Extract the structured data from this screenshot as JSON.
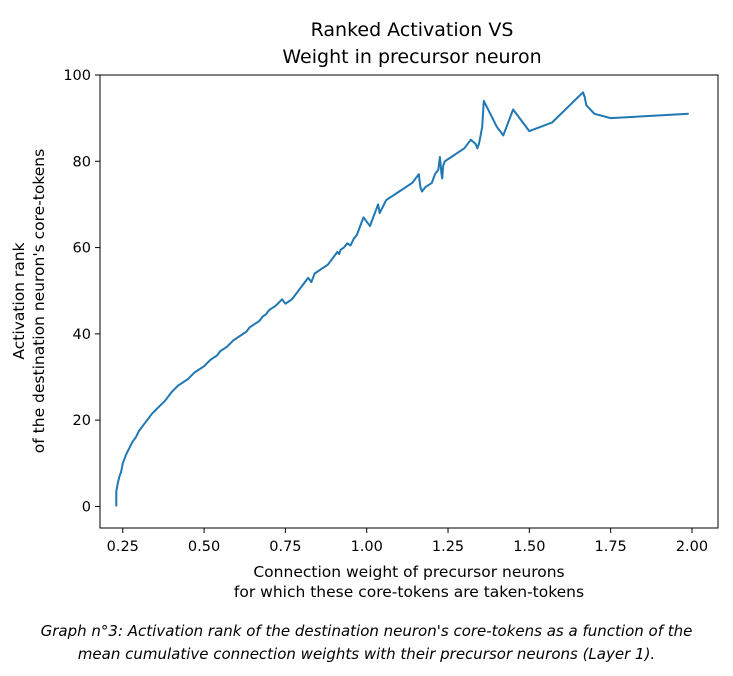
{
  "chart_data": {
    "type": "line",
    "title_lines": [
      "Ranked Activation VS",
      "Weight in precursor neuron"
    ],
    "xlabel_lines": [
      "Connection weight of precursor neurons",
      "for which these core-tokens are taken-tokens"
    ],
    "ylabel_lines": [
      "Activation rank",
      "of the destination neuron's core-tokens"
    ],
    "xlim": [
      0.18,
      2.08
    ],
    "ylim": [
      -5,
      100
    ],
    "xticks": [
      0.25,
      0.5,
      0.75,
      1.0,
      1.25,
      1.5,
      1.75,
      2.0
    ],
    "xtick_labels": [
      "0.25",
      "0.50",
      "0.75",
      "1.00",
      "1.25",
      "1.50",
      "1.75",
      "2.00"
    ],
    "yticks": [
      0,
      20,
      40,
      60,
      80,
      100
    ],
    "ytick_labels": [
      "0",
      "20",
      "40",
      "60",
      "80",
      "100"
    ],
    "grid": false,
    "series": [
      {
        "name": "activation rank",
        "color": "#1f77b4",
        "x": [
          0.23,
          0.23,
          0.235,
          0.24,
          0.245,
          0.25,
          0.26,
          0.27,
          0.28,
          0.29,
          0.3,
          0.32,
          0.34,
          0.36,
          0.38,
          0.4,
          0.42,
          0.43,
          0.45,
          0.47,
          0.48,
          0.5,
          0.52,
          0.53,
          0.54,
          0.55,
          0.57,
          0.59,
          0.61,
          0.63,
          0.64,
          0.65,
          0.67,
          0.68,
          0.69,
          0.7,
          0.72,
          0.74,
          0.75,
          0.76,
          0.77,
          0.78,
          0.79,
          0.8,
          0.81,
          0.82,
          0.83,
          0.835,
          0.84,
          0.86,
          0.88,
          0.9,
          0.91,
          0.915,
          0.92,
          0.93,
          0.94,
          0.95,
          0.96,
          0.97,
          0.98,
          0.99,
          1.0,
          1.01,
          1.02,
          1.03,
          1.035,
          1.04,
          1.06,
          1.08,
          1.1,
          1.12,
          1.14,
          1.16,
          1.165,
          1.17,
          1.18,
          1.2,
          1.21,
          1.22,
          1.225,
          1.23,
          1.232,
          1.235,
          1.24,
          1.26,
          1.28,
          1.3,
          1.32,
          1.335,
          1.34,
          1.345,
          1.35,
          1.355,
          1.36,
          1.38,
          1.4,
          1.42,
          1.45,
          1.5,
          1.57,
          1.665,
          1.67,
          1.675,
          1.7,
          1.75,
          1.99
        ],
        "y": [
          0,
          3.5,
          5.5,
          7,
          8,
          10,
          12,
          13.5,
          15,
          16,
          17.5,
          19.5,
          21.5,
          23,
          24.5,
          26.5,
          28,
          28.5,
          29.5,
          31,
          31.5,
          32.5,
          34,
          34.5,
          35,
          36,
          37,
          38.5,
          39.5,
          40.5,
          41.5,
          42,
          43,
          44,
          44.5,
          45.5,
          46.5,
          48,
          47,
          47.5,
          48,
          49,
          50,
          51,
          52,
          53,
          52,
          53,
          54,
          55,
          56,
          58,
          59,
          58.5,
          59.5,
          60,
          61,
          60.5,
          62,
          63,
          65,
          67,
          66,
          65,
          67,
          69,
          70,
          68,
          71,
          72,
          73,
          74,
          75,
          77,
          74,
          73,
          74,
          75,
          77,
          78,
          81,
          77,
          76,
          79,
          80,
          81,
          82,
          83,
          85,
          84,
          83,
          84,
          86,
          88,
          94,
          91,
          88,
          86,
          92,
          87,
          89,
          96,
          95,
          93,
          91,
          90,
          91
        ]
      }
    ]
  },
  "caption": {
    "line1": "Graph n°3: Activation rank of the destination neuron's core-tokens as a function of the",
    "line2": "mean cumulative connection weights with their precursor neurons (Layer 1)."
  }
}
